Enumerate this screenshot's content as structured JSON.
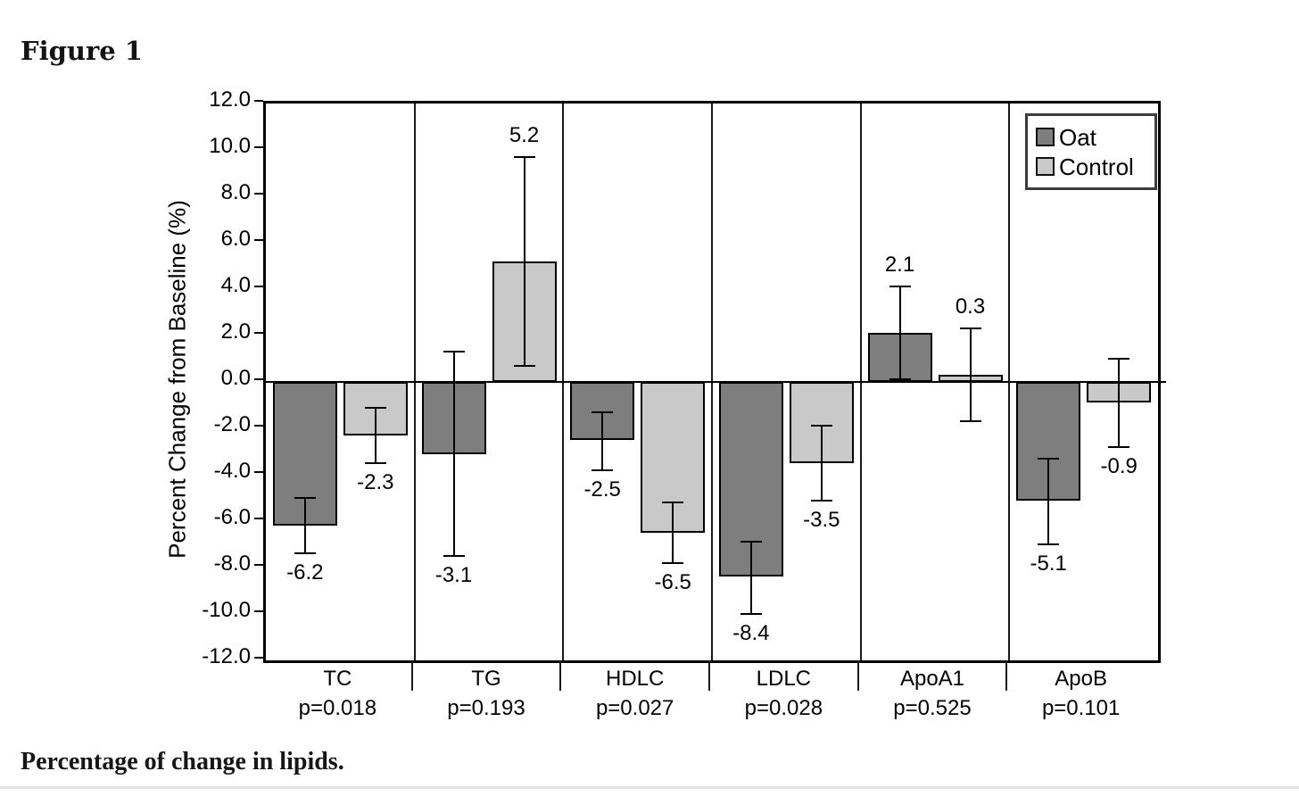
{
  "figure_label": "Figure 1",
  "caption": "Percentage of change in lipids.",
  "chart_data": {
    "type": "bar",
    "title": "Figure 1",
    "ylabel": "Percent Change from Baseline (%)",
    "xlabel": "",
    "ylim": [
      -12,
      12
    ],
    "ytick_step": 2,
    "grid": false,
    "legend_position": "top-right",
    "panel_separators": true,
    "error_bars": true,
    "categories": [
      "TC",
      "TG",
      "HDLC",
      "LDLC",
      "ApoA1",
      "ApoB"
    ],
    "p_values": [
      "p=0.018",
      "p=0.193",
      "p=0.027",
      "p=0.028",
      "p=0.525",
      "p=0.101"
    ],
    "series": [
      {
        "name": "Oat",
        "color": "#7e7e7e",
        "values": [
          -6.2,
          -3.1,
          -2.5,
          -8.4,
          2.1,
          -5.1
        ],
        "err_high": [
          -5.0,
          1.3,
          -1.3,
          -6.9,
          4.1,
          -3.3
        ],
        "err_low": [
          -7.4,
          -7.5,
          -3.8,
          -10.0,
          0.1,
          -7.0
        ]
      },
      {
        "name": "Control",
        "color": "#c9c9c9",
        "values": [
          -2.3,
          5.2,
          -6.5,
          -3.5,
          0.3,
          -0.9
        ],
        "err_high": [
          -1.1,
          9.7,
          -5.2,
          -1.9,
          2.3,
          1.0
        ],
        "err_low": [
          -3.5,
          0.7,
          -7.8,
          -5.1,
          -1.7,
          -2.8
        ]
      }
    ]
  },
  "colors": {
    "bar_border": "#000000",
    "axis": "#000000",
    "text": "#000000",
    "oat_fill": "#7e7e7e",
    "control_fill": "#c9c9c9"
  }
}
